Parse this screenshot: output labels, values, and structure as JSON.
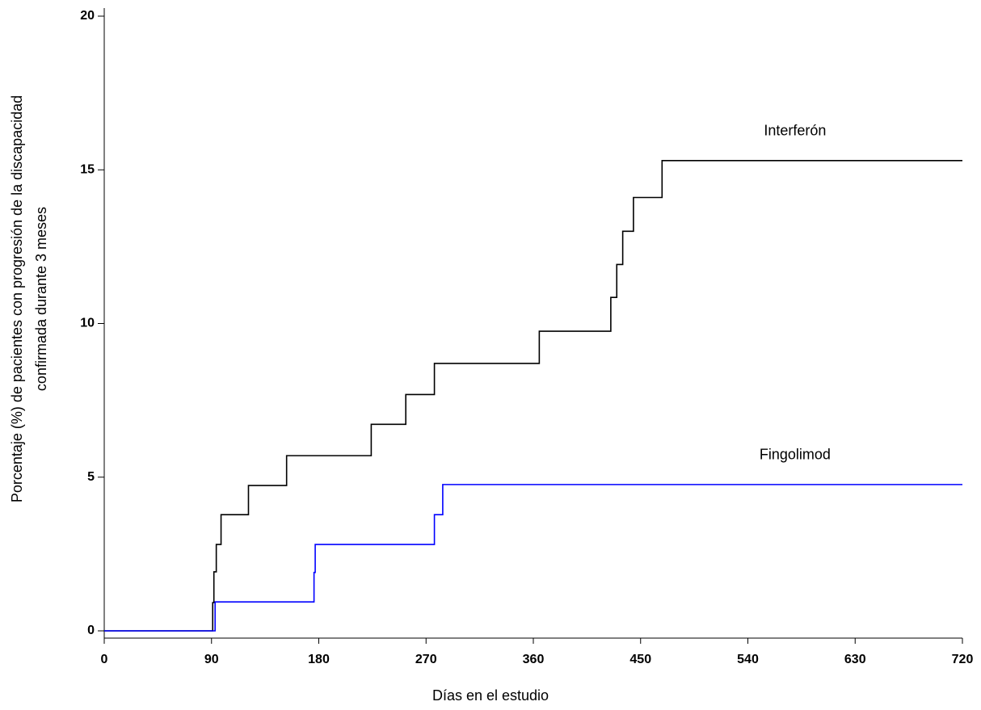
{
  "chart_data": {
    "type": "line",
    "step": "post",
    "xlabel": "Días en el estudio",
    "ylabel": [
      "Porcentaje (%) de pacientes con progresión de la discapacidad",
      "confirmada durante 3 meses"
    ],
    "xlim": [
      0,
      720
    ],
    "xticks": [
      0,
      90,
      180,
      270,
      360,
      450,
      540,
      630,
      720
    ],
    "ylim": [
      0,
      20
    ],
    "yticks": [
      0,
      5,
      10,
      15,
      20
    ],
    "series": [
      {
        "name": "Interferón",
        "color": "#000000",
        "x": [
          0,
          91,
          92,
          94,
          98,
          121,
          153,
          224,
          253,
          277,
          365,
          425,
          430,
          435,
          444,
          468,
          720
        ],
        "values": [
          0,
          0.92,
          1.92,
          2.81,
          3.78,
          4.73,
          5.7,
          6.72,
          7.69,
          8.7,
          9.75,
          10.85,
          11.92,
          13.0,
          14.1,
          15.3,
          15.3
        ]
      },
      {
        "name": "Fingolimod",
        "color": "#0000ff",
        "x": [
          0,
          93,
          176,
          177,
          277,
          284,
          720
        ],
        "values": [
          0,
          0.94,
          1.9,
          2.81,
          3.78,
          4.76,
          4.76
        ]
      }
    ]
  }
}
